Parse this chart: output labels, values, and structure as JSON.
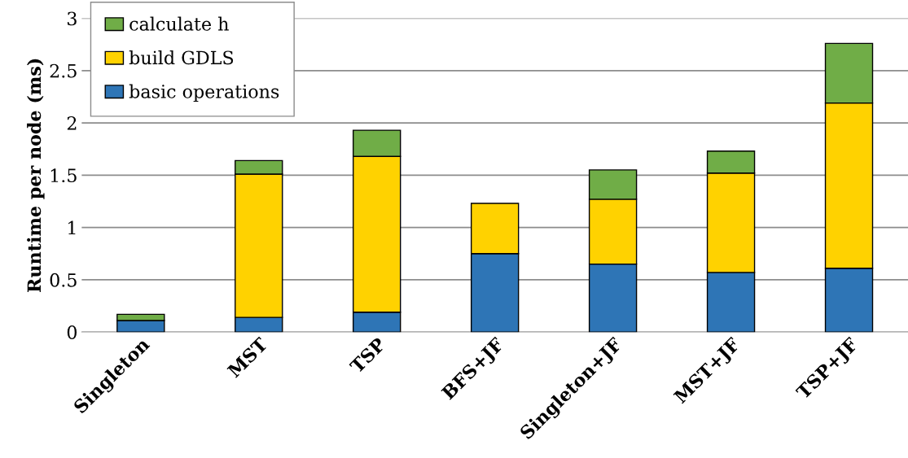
{
  "chart_data": {
    "type": "bar",
    "stacked": true,
    "ylabel": "Runtime per node (ms)",
    "categories": [
      "Singleton",
      "MST",
      "TSP",
      "BFS+JF",
      "Singleton+JF",
      "MST+JF",
      "TSP+JF"
    ],
    "series": [
      {
        "name": "basic operations",
        "color": "#2e75b6",
        "values": [
          0.11,
          0.14,
          0.19,
          0.75,
          0.65,
          0.57,
          0.61
        ]
      },
      {
        "name": "build GDLS",
        "color": "#ffd200",
        "values": [
          null,
          1.37,
          1.49,
          0.48,
          0.62,
          0.95,
          1.58
        ]
      },
      {
        "name": "calculate h",
        "color": "#70ad47",
        "values": [
          0.06,
          0.13,
          0.25,
          null,
          0.28,
          0.21,
          0.57
        ]
      }
    ],
    "ylim": [
      0,
      3
    ],
    "yticks": [
      0,
      0.5,
      1,
      1.5,
      2,
      2.5,
      3
    ],
    "grid": "y",
    "legend": "top left"
  }
}
